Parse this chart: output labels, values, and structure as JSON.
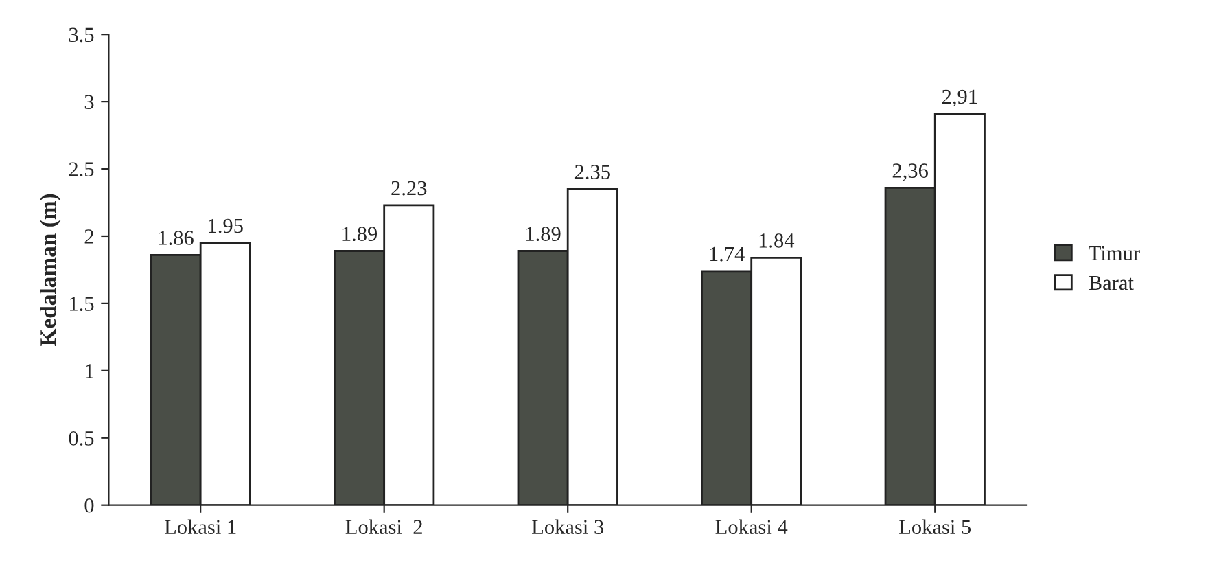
{
  "chart_data": {
    "type": "bar",
    "ylabel": "Kedalaman (m)",
    "categories": [
      "Lokasi 1",
      "Lokasi  2",
      "Lokasi 3",
      "Lokasi 4",
      "Lokasi 5"
    ],
    "series": [
      {
        "name": "Timur",
        "color": "#4a4e47",
        "values": [
          1.86,
          1.89,
          1.89,
          1.74,
          2.36
        ],
        "value_labels": [
          "1.86",
          "1.89",
          "1.89",
          "1.74",
          "2,36"
        ]
      },
      {
        "name": "Barat",
        "color": "#ffffff",
        "values": [
          1.95,
          2.23,
          2.35,
          1.84,
          2.91
        ],
        "value_labels": [
          "1.95",
          "2.23",
          "2.35",
          "1.84",
          "2,91"
        ]
      }
    ],
    "ylim": [
      0,
      3.5
    ],
    "yticks": [
      0,
      0.5,
      1,
      1.5,
      2,
      2.5,
      3,
      3.5
    ],
    "grid": false,
    "legend": "right"
  }
}
